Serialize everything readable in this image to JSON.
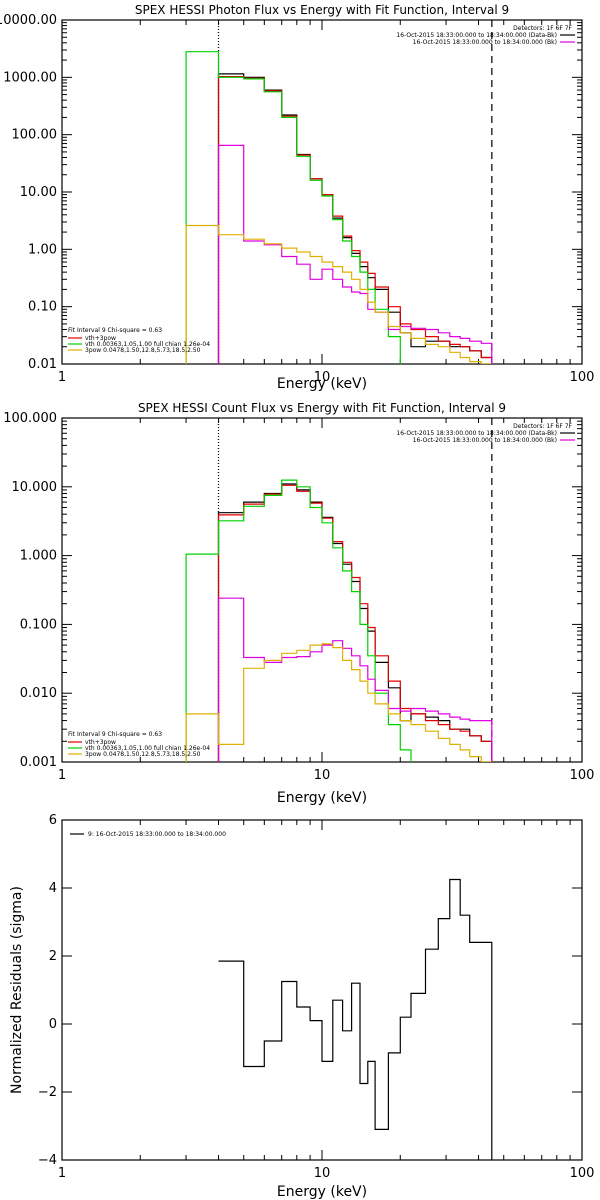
{
  "colors": {
    "black": "#000000",
    "red": "#e00000",
    "green": "#00d000",
    "magenta": "#e000e0",
    "gold": "#e0b000"
  },
  "chart_data": [
    {
      "type": "line",
      "title": "SPEX HESSI Photon Flux vs Energy with Fit Function, Interval 9",
      "xlabel": "Energy (keV)",
      "ylabel": "",
      "xscale": "log",
      "yscale": "log",
      "xlim": [
        1,
        100
      ],
      "ylim": [
        0.01,
        10000
      ],
      "xticks": [
        1,
        10,
        100
      ],
      "xtick_labels": [
        "1",
        "10",
        "100"
      ],
      "yticks": [
        0.01,
        0.1,
        1,
        10,
        100,
        1000,
        10000
      ],
      "ytick_labels": [
        "0.01",
        "0.10",
        "1.00",
        "10.00",
        "100.00",
        "1000.00",
        "10000.00"
      ],
      "vlines": [
        {
          "x": 4.0,
          "style": "dotted"
        },
        {
          "x": 45.0,
          "style": "dashed"
        }
      ],
      "edges": [
        3.0,
        4.0,
        5.0,
        6.0,
        7.0,
        8.0,
        9.0,
        10.0,
        11.0,
        12.0,
        13.0,
        14.0,
        15.0,
        16.0,
        18.0,
        20.0,
        22.0,
        25.0,
        28.0,
        31.0,
        34.0,
        37.0,
        41.0,
        45.0
      ],
      "series": [
        {
          "key": "data",
          "color": "black",
          "values": [
            null,
            1150,
            1000,
            600,
            220,
            45,
            17,
            9,
            3.5,
            1.6,
            0.85,
            0.5,
            0.32,
            0.2,
            0.08,
            0.035,
            0.02,
            0.025,
            0.025,
            0.02,
            0.02,
            0.017,
            0.013
          ]
        },
        {
          "key": "model_total",
          "color": "red",
          "values": [
            null,
            1030,
            960,
            580,
            210,
            44,
            17,
            9,
            3.8,
            1.7,
            0.95,
            0.6,
            0.38,
            0.22,
            0.1,
            0.05,
            0.04,
            0.03,
            0.025,
            0.022,
            0.02,
            0.017,
            0.013
          ]
        },
        {
          "key": "vth",
          "color": "green",
          "values": [
            2800,
            1000,
            940,
            560,
            200,
            42,
            16,
            8.5,
            3.3,
            1.4,
            0.75,
            0.4,
            0.2,
            0.09,
            0.03,
            0.008,
            null,
            null,
            null,
            null,
            null,
            null,
            null
          ]
        },
        {
          "key": "3pow_magenta",
          "color": "magenta",
          "values": [
            null,
            65,
            1.4,
            1.2,
            0.75,
            0.55,
            0.3,
            0.45,
            0.3,
            0.22,
            0.18,
            0.17,
            0.09,
            0.08,
            0.04,
            0.045,
            0.042,
            0.04,
            0.035,
            0.03,
            0.028,
            0.025,
            0.023
          ]
        },
        {
          "key": "3pow_gold",
          "color": "gold",
          "values": [
            2.6,
            1.8,
            1.5,
            1.25,
            1.05,
            0.9,
            0.75,
            0.6,
            0.5,
            0.4,
            0.3,
            0.2,
            0.12,
            0.08,
            0.045,
            0.035,
            0.028,
            0.022,
            0.02,
            0.016,
            0.013,
            0.011,
            0.01
          ]
        }
      ],
      "detector_text": "Detectors: 1F 6F 7F",
      "time_legend": [
        {
          "text": "16-Oct-2015 18:33:00.000 to 18:34:00.000 (Data-Bk)",
          "color": "black"
        },
        {
          "text": "16-Oct-2015 18:33:00.000 to 18:34:00.000 (Bk)",
          "color": "magenta"
        }
      ],
      "fit_header": "Fit Interval 9   Chi-square = 0.63",
      "fit_legend": [
        {
          "text": "vth+3pow",
          "color": "red"
        },
        {
          "text": "vth 0.00363,1.05,1.00  full chian 1.26e-04",
          "color": "green"
        },
        {
          "text": "3pow 0.0478,1.50,12.8,5.73,18.5,2.50",
          "color": "gold"
        }
      ]
    },
    {
      "type": "line",
      "title": "SPEX HESSI Count Flux vs Energy with Fit Function, Interval 9",
      "xlabel": "Energy (keV)",
      "ylabel": "",
      "xscale": "log",
      "yscale": "log",
      "xlim": [
        1,
        100
      ],
      "ylim": [
        0.001,
        100
      ],
      "xticks": [
        1,
        10,
        100
      ],
      "xtick_labels": [
        "1",
        "10",
        "100"
      ],
      "yticks": [
        0.001,
        0.01,
        0.1,
        1,
        10,
        100
      ],
      "ytick_labels": [
        "0.001",
        "0.010",
        "0.100",
        "1.000",
        "10.000",
        "100.000"
      ],
      "vlines": [
        {
          "x": 4.0,
          "style": "dotted"
        },
        {
          "x": 45.0,
          "style": "dashed"
        }
      ],
      "edges": [
        3.0,
        4.0,
        5.0,
        6.0,
        7.0,
        8.0,
        9.0,
        10.0,
        11.0,
        12.0,
        13.0,
        14.0,
        15.0,
        16.0,
        18.0,
        20.0,
        22.0,
        25.0,
        28.0,
        31.0,
        34.0,
        37.0,
        41.0,
        45.0
      ],
      "series": [
        {
          "key": "data",
          "color": "black",
          "values": [
            null,
            4.2,
            6.0,
            8.0,
            11.0,
            9.0,
            6.0,
            3.6,
            1.5,
            0.75,
            0.42,
            0.17,
            0.08,
            0.028,
            0.012,
            0.004,
            0.005,
            0.0045,
            0.004,
            0.003,
            0.003,
            0.0024,
            0.002
          ]
        },
        {
          "key": "model_total",
          "color": "red",
          "values": [
            null,
            3.9,
            5.6,
            7.8,
            10.5,
            8.6,
            5.8,
            3.5,
            1.6,
            0.8,
            0.48,
            0.2,
            0.09,
            0.035,
            0.015,
            0.006,
            0.005,
            0.004,
            0.0035,
            0.003,
            0.0028,
            0.0024,
            0.002
          ]
        },
        {
          "key": "vth",
          "color": "green",
          "values": [
            1.05,
            3.2,
            5.2,
            7.5,
            12.5,
            10.0,
            5.0,
            3.0,
            1.3,
            0.6,
            0.3,
            0.1,
            0.035,
            0.01,
            0.0035,
            0.0015,
            null,
            null,
            null,
            null,
            null,
            null,
            null
          ]
        },
        {
          "key": "3pow_magenta",
          "color": "magenta",
          "values": [
            null,
            0.24,
            0.033,
            0.028,
            0.033,
            0.034,
            0.04,
            0.05,
            0.058,
            0.045,
            0.035,
            0.025,
            0.016,
            0.011,
            0.006,
            0.0055,
            0.006,
            0.0055,
            0.005,
            0.0045,
            0.0042,
            0.004,
            0.004
          ]
        },
        {
          "key": "3pow_gold",
          "color": "gold",
          "values": [
            0.005,
            0.0018,
            0.023,
            0.03,
            0.038,
            0.042,
            0.05,
            0.052,
            0.046,
            0.03,
            0.022,
            0.015,
            0.01,
            0.007,
            0.005,
            0.004,
            0.0035,
            0.0028,
            0.0022,
            0.0018,
            0.0015,
            0.0012,
            0.001
          ]
        }
      ],
      "detector_text": "Detectors: 1F 6F 7F",
      "time_legend": [
        {
          "text": "16-Oct-2015 18:33:00.000 to 18:34:00.000 (Data-Bk)",
          "color": "black"
        },
        {
          "text": "16-Oct-2015 18:33:00.000 to 18:34:00.000 (Bk)",
          "color": "magenta"
        }
      ],
      "fit_header": "Fit Interval 9   Chi-square = 0.63",
      "fit_legend": [
        {
          "text": "vth+3pow",
          "color": "red"
        },
        {
          "text": "vth 0.00363,1.05,1.00  full chian 1.26e-04",
          "color": "green"
        },
        {
          "text": "3pow 0.0478,1.50,12.8,5.73,18.5,2.50",
          "color": "gold"
        }
      ]
    },
    {
      "type": "line",
      "title": "",
      "xlabel": "Energy (keV)",
      "ylabel": "Normalized Residuals (sigma)",
      "xscale": "log",
      "yscale": "linear",
      "xlim": [
        1,
        100
      ],
      "ylim": [
        -4,
        6
      ],
      "xticks": [
        1,
        10,
        100
      ],
      "xtick_labels": [
        "1",
        "10",
        "100"
      ],
      "yticks": [
        -4,
        -2,
        0,
        2,
        4,
        6
      ],
      "ytick_labels": [
        "−4",
        "−2",
        "0",
        "2",
        "4",
        "6"
      ],
      "edges": [
        4.0,
        5.0,
        6.0,
        7.0,
        8.0,
        9.0,
        10.0,
        11.0,
        12.0,
        13.0,
        14.0,
        15.0,
        16.0,
        18.0,
        20.0,
        22.0,
        25.0,
        28.0,
        31.0,
        34.0,
        37.0,
        41.0,
        45.0
      ],
      "series": [
        {
          "key": "residuals",
          "color": "black",
          "values": [
            1.85,
            -1.25,
            -0.5,
            1.25,
            0.5,
            0.1,
            -1.1,
            0.7,
            -0.2,
            1.2,
            -1.75,
            -1.1,
            -3.1,
            -0.85,
            0.2,
            0.9,
            2.2,
            3.1,
            4.25,
            3.2,
            2.4,
            2.4
          ]
        }
      ],
      "legend": [
        {
          "text": "9: 16-Oct-2015 18:33:00.000 to 18:34:00.000",
          "color": "black"
        }
      ]
    }
  ]
}
